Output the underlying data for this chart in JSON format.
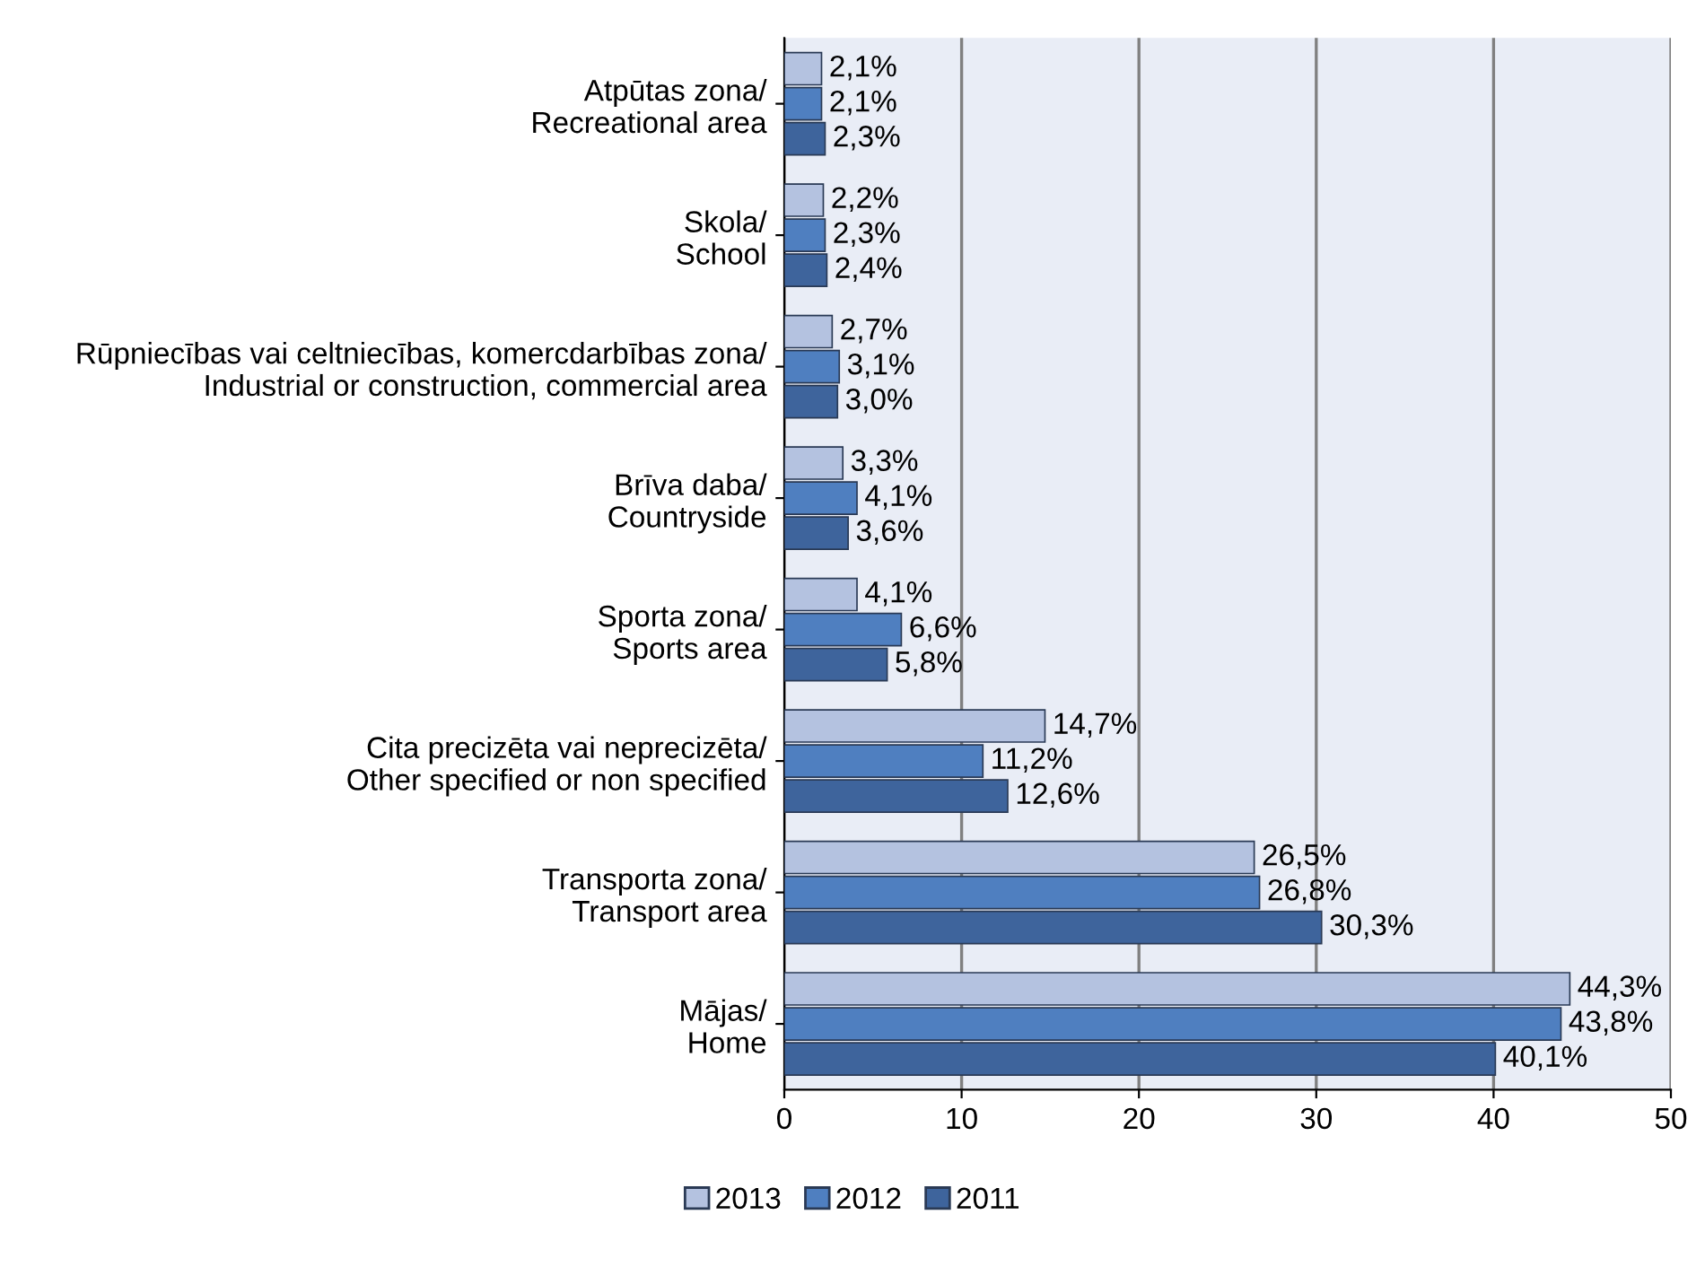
{
  "chart_data": {
    "type": "bar",
    "orientation": "horizontal",
    "categories": [
      "Atpūtas zona/\nRecreational area",
      "Skola/\nSchool",
      "Rūpniecības vai celtniecības, komercdarbības zona/\nIndustrial or construction, commercial area",
      "Brīva daba/\nCountryside",
      "Sporta zona/\nSports area",
      "Cita precizēta vai neprecizēta/\nOther specified or non specified",
      "Transporta zona/\nTransport area",
      "Mājas/\nHome"
    ],
    "series": [
      {
        "name": "2013",
        "color": "#b4c2e0",
        "values": [
          2.1,
          2.2,
          2.7,
          3.3,
          4.1,
          14.7,
          26.5,
          44.3
        ],
        "value_labels": [
          "2,1%",
          "2,2%",
          "2,7%",
          "3,3%",
          "4,1%",
          "14,7%",
          "26,5%",
          "44,3%"
        ]
      },
      {
        "name": "2012",
        "color": "#4f7fc0",
        "values": [
          2.1,
          2.3,
          3.1,
          4.1,
          6.6,
          11.2,
          26.8,
          43.8
        ],
        "value_labels": [
          "2,1%",
          "2,3%",
          "3,1%",
          "4,1%",
          "6,6%",
          "11,2%",
          "26,8%",
          "43,8%"
        ]
      },
      {
        "name": "2011",
        "color": "#3e649c",
        "values": [
          2.3,
          2.4,
          3.0,
          3.6,
          5.8,
          12.6,
          30.3,
          40.1
        ],
        "value_labels": [
          "2,3%",
          "2,4%",
          "3,0%",
          "3,6%",
          "5,8%",
          "12,6%",
          "30,3%",
          "40,1%"
        ]
      }
    ],
    "xlim": [
      0,
      50
    ],
    "xticks": [
      0,
      10,
      20,
      30,
      40,
      50
    ],
    "grid": "x",
    "legend": "bottom"
  }
}
